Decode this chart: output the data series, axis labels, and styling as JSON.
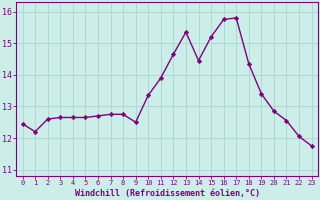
{
  "x": [
    0,
    1,
    2,
    3,
    4,
    5,
    6,
    7,
    8,
    9,
    10,
    11,
    12,
    13,
    14,
    15,
    16,
    17,
    18,
    19,
    20,
    21,
    22,
    23
  ],
  "y": [
    12.45,
    12.2,
    12.6,
    12.65,
    12.65,
    12.65,
    12.7,
    12.75,
    12.75,
    12.5,
    13.35,
    13.9,
    14.65,
    15.35,
    14.45,
    15.2,
    15.75,
    15.8,
    14.35,
    13.4,
    12.85,
    12.55,
    12.05,
    11.75
  ],
  "line_color": "#800080",
  "marker": "D",
  "marker_size": 2.2,
  "bg_color": "#cceee8",
  "grid_color": "#aad4ce",
  "xlabel": "Windchill (Refroidissement éolien,°C)",
  "xlabel_color": "#800080",
  "ylabel_ticks": [
    11,
    12,
    13,
    14,
    15,
    16
  ],
  "xtick_labels": [
    "0",
    "1",
    "2",
    "3",
    "4",
    "5",
    "6",
    "7",
    "8",
    "9",
    "10",
    "11",
    "12",
    "13",
    "14",
    "15",
    "16",
    "17",
    "18",
    "19",
    "20",
    "21",
    "22",
    "23"
  ],
  "ylim": [
    10.8,
    16.3
  ],
  "xlim": [
    -0.5,
    23.5
  ],
  "tick_color": "#800080",
  "tick_label_color": "#800080",
  "spine_color": "#800080",
  "linewidth": 1.0
}
